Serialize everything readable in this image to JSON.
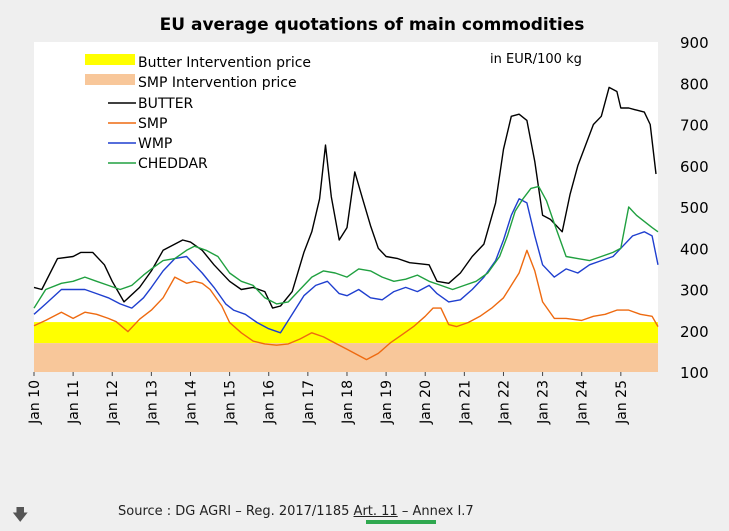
{
  "chart_data": {
    "type": "line",
    "title": "EU average quotations of main commodities",
    "unit_note": "in EUR/100 kg",
    "ylim": [
      100,
      900
    ],
    "yticks": [
      "900",
      "800",
      "700",
      "600",
      "500",
      "400",
      "300",
      "200",
      "100"
    ],
    "xticks": [
      "Jan 10",
      "Jan 11",
      "Jan 12",
      "Jan 13",
      "Jan 14",
      "Jan 15",
      "Jan 16",
      "Jan 17",
      "Jan 18",
      "Jan 19",
      "Jan 20",
      "Jan 21",
      "Jan 22",
      "Jan 23",
      "Jan 24",
      "Jan 25"
    ],
    "bands": [
      {
        "name": "Butter Intervention price",
        "from": 170,
        "to": 221,
        "color": "#ffff00"
      },
      {
        "name": "SMP Intervention price",
        "from": 100,
        "to": 170,
        "color": "#f8c79a"
      }
    ],
    "series": [
      {
        "name": "BUTTER",
        "color": "#000000",
        "x": [
          2010.0,
          2010.2,
          2010.6,
          2011.0,
          2011.2,
          2011.5,
          2011.8,
          2012.0,
          2012.3,
          2012.7,
          2013.0,
          2013.3,
          2013.8,
          2014.0,
          2014.3,
          2014.6,
          2015.0,
          2015.3,
          2015.6,
          2015.9,
          2016.1,
          2016.3,
          2016.6,
          2016.9,
          2017.1,
          2017.3,
          2017.45,
          2017.6,
          2017.8,
          2018.0,
          2018.2,
          2018.4,
          2018.6,
          2018.8,
          2019.0,
          2019.3,
          2019.6,
          2019.9,
          2020.1,
          2020.3,
          2020.6,
          2020.9,
          2021.2,
          2021.5,
          2021.8,
          2022.0,
          2022.2,
          2022.4,
          2022.6,
          2022.8,
          2023.0,
          2023.2,
          2023.5,
          2023.7,
          2023.9,
          2024.1,
          2024.3,
          2024.5,
          2024.7,
          2024.9,
          2025.0,
          2025.2,
          2025.4,
          2025.6,
          2025.75,
          2025.9
        ],
        "values": [
          305,
          300,
          375,
          380,
          390,
          390,
          360,
          320,
          270,
          305,
          345,
          395,
          420,
          415,
          395,
          360,
          320,
          300,
          305,
          295,
          255,
          260,
          295,
          390,
          440,
          520,
          650,
          525,
          420,
          450,
          585,
          520,
          455,
          400,
          380,
          375,
          365,
          362,
          360,
          320,
          315,
          340,
          380,
          410,
          510,
          640,
          720,
          725,
          710,
          610,
          480,
          470,
          440,
          530,
          600,
          650,
          700,
          720,
          790,
          780,
          740,
          740,
          735,
          730,
          700,
          580
        ]
      },
      {
        "name": "SMP",
        "color": "#ee6a10",
        "x": [
          2010.0,
          2010.3,
          2010.7,
          2011.0,
          2011.3,
          2011.6,
          2011.9,
          2012.1,
          2012.4,
          2012.7,
          2013.0,
          2013.3,
          2013.6,
          2013.9,
          2014.1,
          2014.3,
          2014.5,
          2014.8,
          2015.0,
          2015.3,
          2015.6,
          2015.9,
          2016.2,
          2016.5,
          2016.8,
          2017.1,
          2017.4,
          2017.7,
          2018.0,
          2018.3,
          2018.5,
          2018.8,
          2019.1,
          2019.4,
          2019.7,
          2020.0,
          2020.2,
          2020.4,
          2020.6,
          2020.8,
          2021.1,
          2021.4,
          2021.7,
          2022.0,
          2022.2,
          2022.4,
          2022.6,
          2022.8,
          2023.0,
          2023.3,
          2023.6,
          2024.0,
          2024.3,
          2024.6,
          2024.9,
          2025.2,
          2025.5,
          2025.8,
          2025.95
        ],
        "values": [
          212,
          225,
          245,
          230,
          245,
          240,
          230,
          222,
          198,
          228,
          250,
          280,
          330,
          315,
          320,
          315,
          300,
          260,
          220,
          195,
          175,
          168,
          165,
          168,
          180,
          195,
          185,
          170,
          155,
          140,
          130,
          145,
          170,
          190,
          210,
          235,
          255,
          255,
          215,
          210,
          220,
          235,
          255,
          280,
          310,
          340,
          395,
          345,
          270,
          230,
          230,
          225,
          235,
          240,
          250,
          250,
          240,
          235,
          210
        ]
      },
      {
        "name": "WMP",
        "color": "#1f3fcf",
        "x": [
          2010.0,
          2010.3,
          2010.7,
          2011.0,
          2011.3,
          2011.6,
          2011.9,
          2012.2,
          2012.5,
          2012.8,
          2013.0,
          2013.3,
          2013.6,
          2013.9,
          2014.1,
          2014.3,
          2014.6,
          2014.9,
          2015.1,
          2015.4,
          2015.7,
          2016.0,
          2016.3,
          2016.6,
          2016.9,
          2017.2,
          2017.5,
          2017.8,
          2018.0,
          2018.3,
          2018.6,
          2018.9,
          2019.2,
          2019.5,
          2019.8,
          2020.1,
          2020.3,
          2020.6,
          2020.9,
          2021.2,
          2021.5,
          2021.8,
          2022.0,
          2022.2,
          2022.4,
          2022.6,
          2022.8,
          2023.0,
          2023.3,
          2023.6,
          2023.9,
          2024.2,
          2024.5,
          2024.8,
          2025.0,
          2025.3,
          2025.6,
          2025.8,
          2025.95
        ],
        "values": [
          240,
          265,
          300,
          300,
          300,
          290,
          280,
          265,
          255,
          280,
          305,
          345,
          375,
          380,
          360,
          340,
          305,
          265,
          250,
          240,
          220,
          205,
          195,
          240,
          285,
          310,
          320,
          290,
          285,
          300,
          280,
          275,
          295,
          305,
          295,
          310,
          290,
          270,
          275,
          300,
          330,
          370,
          420,
          480,
          520,
          510,
          430,
          360,
          330,
          350,
          340,
          360,
          370,
          380,
          400,
          430,
          440,
          430,
          360
        ]
      },
      {
        "name": "CHEDDAR",
        "color": "#20a040",
        "x": [
          2010.0,
          2010.3,
          2010.7,
          2011.0,
          2011.3,
          2011.6,
          2011.9,
          2012.2,
          2012.5,
          2012.8,
          2013.0,
          2013.3,
          2013.6,
          2013.9,
          2014.1,
          2014.4,
          2014.7,
          2015.0,
          2015.3,
          2015.6,
          2015.9,
          2016.2,
          2016.5,
          2016.8,
          2017.1,
          2017.4,
          2017.7,
          2018.0,
          2018.3,
          2018.6,
          2018.9,
          2019.2,
          2019.5,
          2019.8,
          2020.1,
          2020.4,
          2020.7,
          2021.0,
          2021.3,
          2021.6,
          2021.9,
          2022.1,
          2022.3,
          2022.5,
          2022.7,
          2022.9,
          2023.1,
          2023.3,
          2023.6,
          2023.9,
          2024.2,
          2024.5,
          2024.8,
          2025.0,
          2025.2,
          2025.4,
          2025.6,
          2025.8,
          2025.95
        ],
        "values": [
          255,
          300,
          315,
          320,
          330,
          320,
          310,
          300,
          310,
          335,
          350,
          370,
          375,
          395,
          405,
          395,
          380,
          340,
          320,
          310,
          280,
          265,
          270,
          300,
          330,
          345,
          340,
          330,
          350,
          345,
          330,
          320,
          325,
          335,
          320,
          310,
          300,
          310,
          320,
          340,
          380,
          430,
          490,
          520,
          545,
          550,
          515,
          460,
          380,
          375,
          370,
          380,
          390,
          400,
          500,
          480,
          465,
          450,
          440
        ]
      }
    ]
  },
  "footer": {
    "source": "Source : DG AGRI – Reg. 2017/1185",
    "source_art": "Art. 11",
    "source_annex": "– Annex I.7"
  }
}
